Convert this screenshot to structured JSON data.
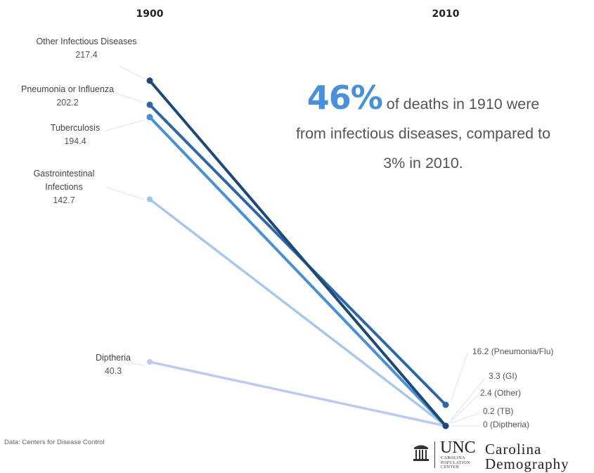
{
  "chart_data": {
    "type": "line",
    "subtype": "slope",
    "categories": [
      "1900",
      "2010"
    ],
    "series": [
      {
        "key": "other",
        "name": "Other Infectious Diseases",
        "values": [
          217.4,
          2.4
        ],
        "start_label": [
          "Other Infectious Diseases"
        ],
        "start_value_label": "217.4",
        "end_label": "2.4  (Other)",
        "color": "#1d4977"
      },
      {
        "key": "flu",
        "name": "Pneumonia or Influenza",
        "values": [
          202.2,
          16.2
        ],
        "start_label": [
          "Pneumonia or Influenza"
        ],
        "start_value_label": "202.2",
        "end_label": "16.2  (Pneumonia/Flu)",
        "color": "#2f66a8"
      },
      {
        "key": "tb",
        "name": "Tuberculosis",
        "values": [
          194.4,
          0.2
        ],
        "start_label": [
          "Tuberculosis"
        ],
        "start_value_label": "194.4",
        "end_label": "0.2  (TB)",
        "color": "#4c8fd6"
      },
      {
        "key": "gi",
        "name": "Gastrointestinal Infections",
        "values": [
          142.7,
          3.3
        ],
        "start_label": [
          "Gastrointestinal",
          "Infections"
        ],
        "start_value_label": "142.7",
        "end_label": "3.3  (GI)",
        "color": "#9cc3e9"
      },
      {
        "key": "dip",
        "name": "Diptheria",
        "values": [
          40.3,
          0
        ],
        "start_label": [
          "Diptheria"
        ],
        "start_value_label": "40.3",
        "end_label": "0  (Diptheria)",
        "color": "#b9cbef"
      }
    ],
    "ylim": [
      0,
      250
    ],
    "grid": false,
    "legend": "none"
  },
  "callout": {
    "big": "46%",
    "text_line1": " of deaths in 1910 were",
    "text_line2": "from infectious diseases, compared to",
    "text_line3": "3% in 2010."
  },
  "source": "Data: Centers for Disease Control",
  "logo": {
    "unc": "UNC",
    "sub": [
      "CAROLINA",
      "POPULATION",
      "CENTER"
    ],
    "brand1": "Carolina",
    "brand2": "Demography"
  }
}
